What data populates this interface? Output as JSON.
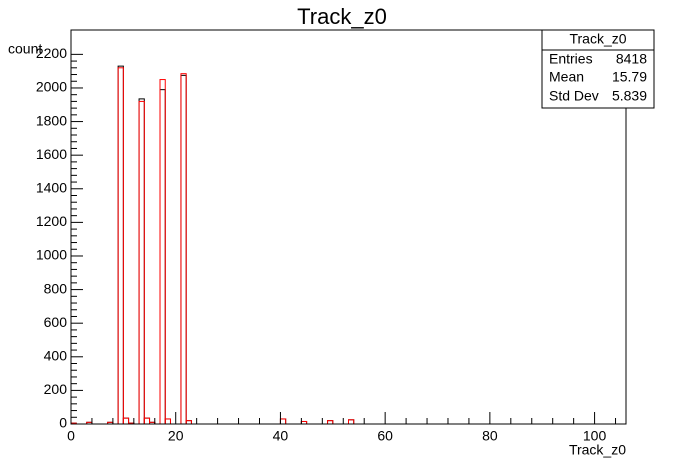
{
  "chart_data": {
    "type": "histogram",
    "title": "Track_z0",
    "x_label": "Track_z0",
    "y_label": "count",
    "bins": [
      0,
      1,
      2,
      3,
      4,
      5,
      6,
      7,
      8,
      9,
      10,
      11,
      12,
      13,
      14,
      15,
      16,
      17,
      18,
      19,
      20,
      21,
      22,
      23,
      24,
      25,
      26,
      27,
      28,
      29,
      30,
      31,
      32,
      33,
      34,
      35,
      36,
      37,
      38,
      39,
      40,
      41,
      42,
      43,
      44,
      45,
      46,
      47,
      48,
      49,
      50,
      51,
      52,
      53,
      54,
      55,
      56,
      57,
      58,
      59,
      60,
      61,
      62,
      63,
      64,
      65,
      66,
      67,
      68,
      69,
      70,
      71,
      72,
      73,
      74,
      75,
      76,
      77,
      78,
      79,
      80,
      81,
      82,
      83,
      84,
      85,
      86,
      87,
      88,
      89,
      90,
      91,
      92,
      93,
      94,
      95,
      96,
      97,
      98,
      99,
      100,
      101,
      102,
      103,
      104,
      105,
      106
    ],
    "series": [
      {
        "color": "#000000",
        "values": [
          5,
          0,
          0,
          10,
          0,
          0,
          0,
          10,
          0,
          2130,
          35,
          5,
          0,
          1935,
          35,
          10,
          0,
          1990,
          30,
          0,
          0,
          2075,
          20,
          0,
          0,
          0,
          0,
          0,
          0,
          0,
          0,
          0,
          0,
          0,
          0,
          0,
          0,
          0,
          0,
          0,
          30,
          0,
          0,
          0,
          15,
          0,
          0,
          0,
          0,
          20,
          0,
          0,
          0,
          25,
          0,
          0,
          0,
          0,
          0,
          0,
          0,
          0,
          0,
          0,
          0,
          0,
          0,
          0,
          0,
          0,
          0,
          0,
          0,
          0,
          0,
          0,
          0,
          0,
          0,
          0,
          0,
          0,
          0,
          0,
          0,
          0,
          0,
          0,
          0,
          0,
          0,
          0,
          0,
          0,
          0,
          0,
          0,
          0,
          0,
          0,
          0,
          0,
          0,
          0,
          0,
          0
        ]
      },
      {
        "color": "#ff0000",
        "values": [
          5,
          0,
          0,
          10,
          0,
          0,
          0,
          10,
          0,
          2120,
          35,
          5,
          0,
          1920,
          35,
          10,
          0,
          2050,
          30,
          0,
          0,
          2085,
          20,
          0,
          0,
          0,
          0,
          0,
          0,
          0,
          0,
          0,
          0,
          0,
          0,
          0,
          0,
          0,
          0,
          0,
          30,
          0,
          0,
          0,
          15,
          0,
          0,
          0,
          0,
          20,
          0,
          0,
          0,
          25,
          0,
          0,
          0,
          0,
          0,
          0,
          0,
          0,
          0,
          0,
          0,
          0,
          0,
          0,
          0,
          0,
          0,
          0,
          0,
          0,
          0,
          0,
          0,
          0,
          0,
          0,
          0,
          0,
          0,
          0,
          0,
          0,
          0,
          0,
          0,
          0,
          0,
          0,
          0,
          0,
          0,
          0,
          0,
          0,
          0,
          0,
          0,
          0,
          0,
          0,
          0,
          0
        ]
      }
    ],
    "xlim": [
      0,
      106
    ],
    "ylim": [
      0,
      2345
    ],
    "xticks": [
      0,
      20,
      40,
      60,
      80,
      100
    ],
    "yticks": [
      0,
      200,
      400,
      600,
      800,
      1000,
      1200,
      1400,
      1600,
      1800,
      2000,
      2200
    ],
    "stats": {
      "title": "Track_z0",
      "rows": [
        [
          "Entries",
          8418
        ],
        [
          "Mean",
          15.79
        ],
        [
          "Std Dev",
          5.839
        ]
      ]
    }
  }
}
